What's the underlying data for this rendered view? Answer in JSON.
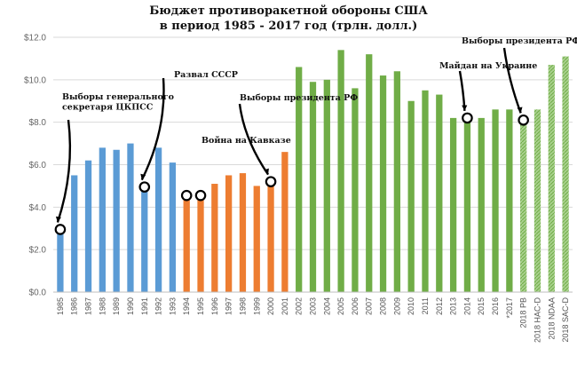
{
  "chart_data": {
    "type": "bar",
    "title": "Бюджет противоракетной обороны США",
    "subtitle": "в период 1985 - 2017 год (трлн. долл.)",
    "ylim": [
      0,
      12
    ],
    "yticks": [
      "$0.0",
      "$2.0",
      "$4.0",
      "$6.0",
      "$8.0",
      "$10.0",
      "$12.0"
    ],
    "grid": true,
    "categories": [
      "1985",
      "1986",
      "1987",
      "1988",
      "1989",
      "1990",
      "1991",
      "1992",
      "1993",
      "1994",
      "1995",
      "1996",
      "1997",
      "1998",
      "1999",
      "2000",
      "2001",
      "2002",
      "2003",
      "2004",
      "2005",
      "2006",
      "2007",
      "2008",
      "2009",
      "2010",
      "2011",
      "2012",
      "2013",
      "2014",
      "2015",
      "2016",
      "*2017",
      "2018 PB",
      "2018 HAC-D",
      "2018 NDAA",
      "2018 SAC-D"
    ],
    "values": [
      2.9,
      5.5,
      6.2,
      6.8,
      6.7,
      7.0,
      4.9,
      6.8,
      6.1,
      4.5,
      4.7,
      5.1,
      5.5,
      5.6,
      5.0,
      5.0,
      6.6,
      10.6,
      9.9,
      10.0,
      11.4,
      9.6,
      11.2,
      10.2,
      10.4,
      9.0,
      9.5,
      9.3,
      8.2,
      8.3,
      8.2,
      8.6,
      8.6,
      8.0,
      8.6,
      10.7,
      11.1
    ],
    "bar_groups": [
      {
        "from": 0,
        "to": 8,
        "color": "#5b9bd5",
        "style": "solid"
      },
      {
        "from": 9,
        "to": 16,
        "color": "#ed7d31",
        "style": "solid"
      },
      {
        "from": 17,
        "to": 32,
        "color": "#70ad47",
        "style": "solid"
      },
      {
        "from": 33,
        "to": 36,
        "color": "#70ad47",
        "style": "hatched"
      }
    ],
    "annotations": [
      {
        "lines": [
          "Выборы генерального",
          "секретаря ЦКПСС"
        ],
        "category_index": 0,
        "value": 2.95
      },
      {
        "lines": [
          "Развал СССР"
        ],
        "category_index": 6,
        "value": 4.95
      },
      {
        "lines": [
          "Война на Кавказе"
        ],
        "category_index": 9,
        "value": 4.55,
        "extra_marker_index": 10
      },
      {
        "lines": [
          "Выборы президента РФ"
        ],
        "category_index": 15,
        "value": 5.2
      },
      {
        "lines": [
          "Майдан на Украине"
        ],
        "category_index": 29,
        "value": 8.2
      },
      {
        "lines": [
          "Выборы президента РФ"
        ],
        "category_index": 33,
        "value": 8.1
      }
    ]
  }
}
